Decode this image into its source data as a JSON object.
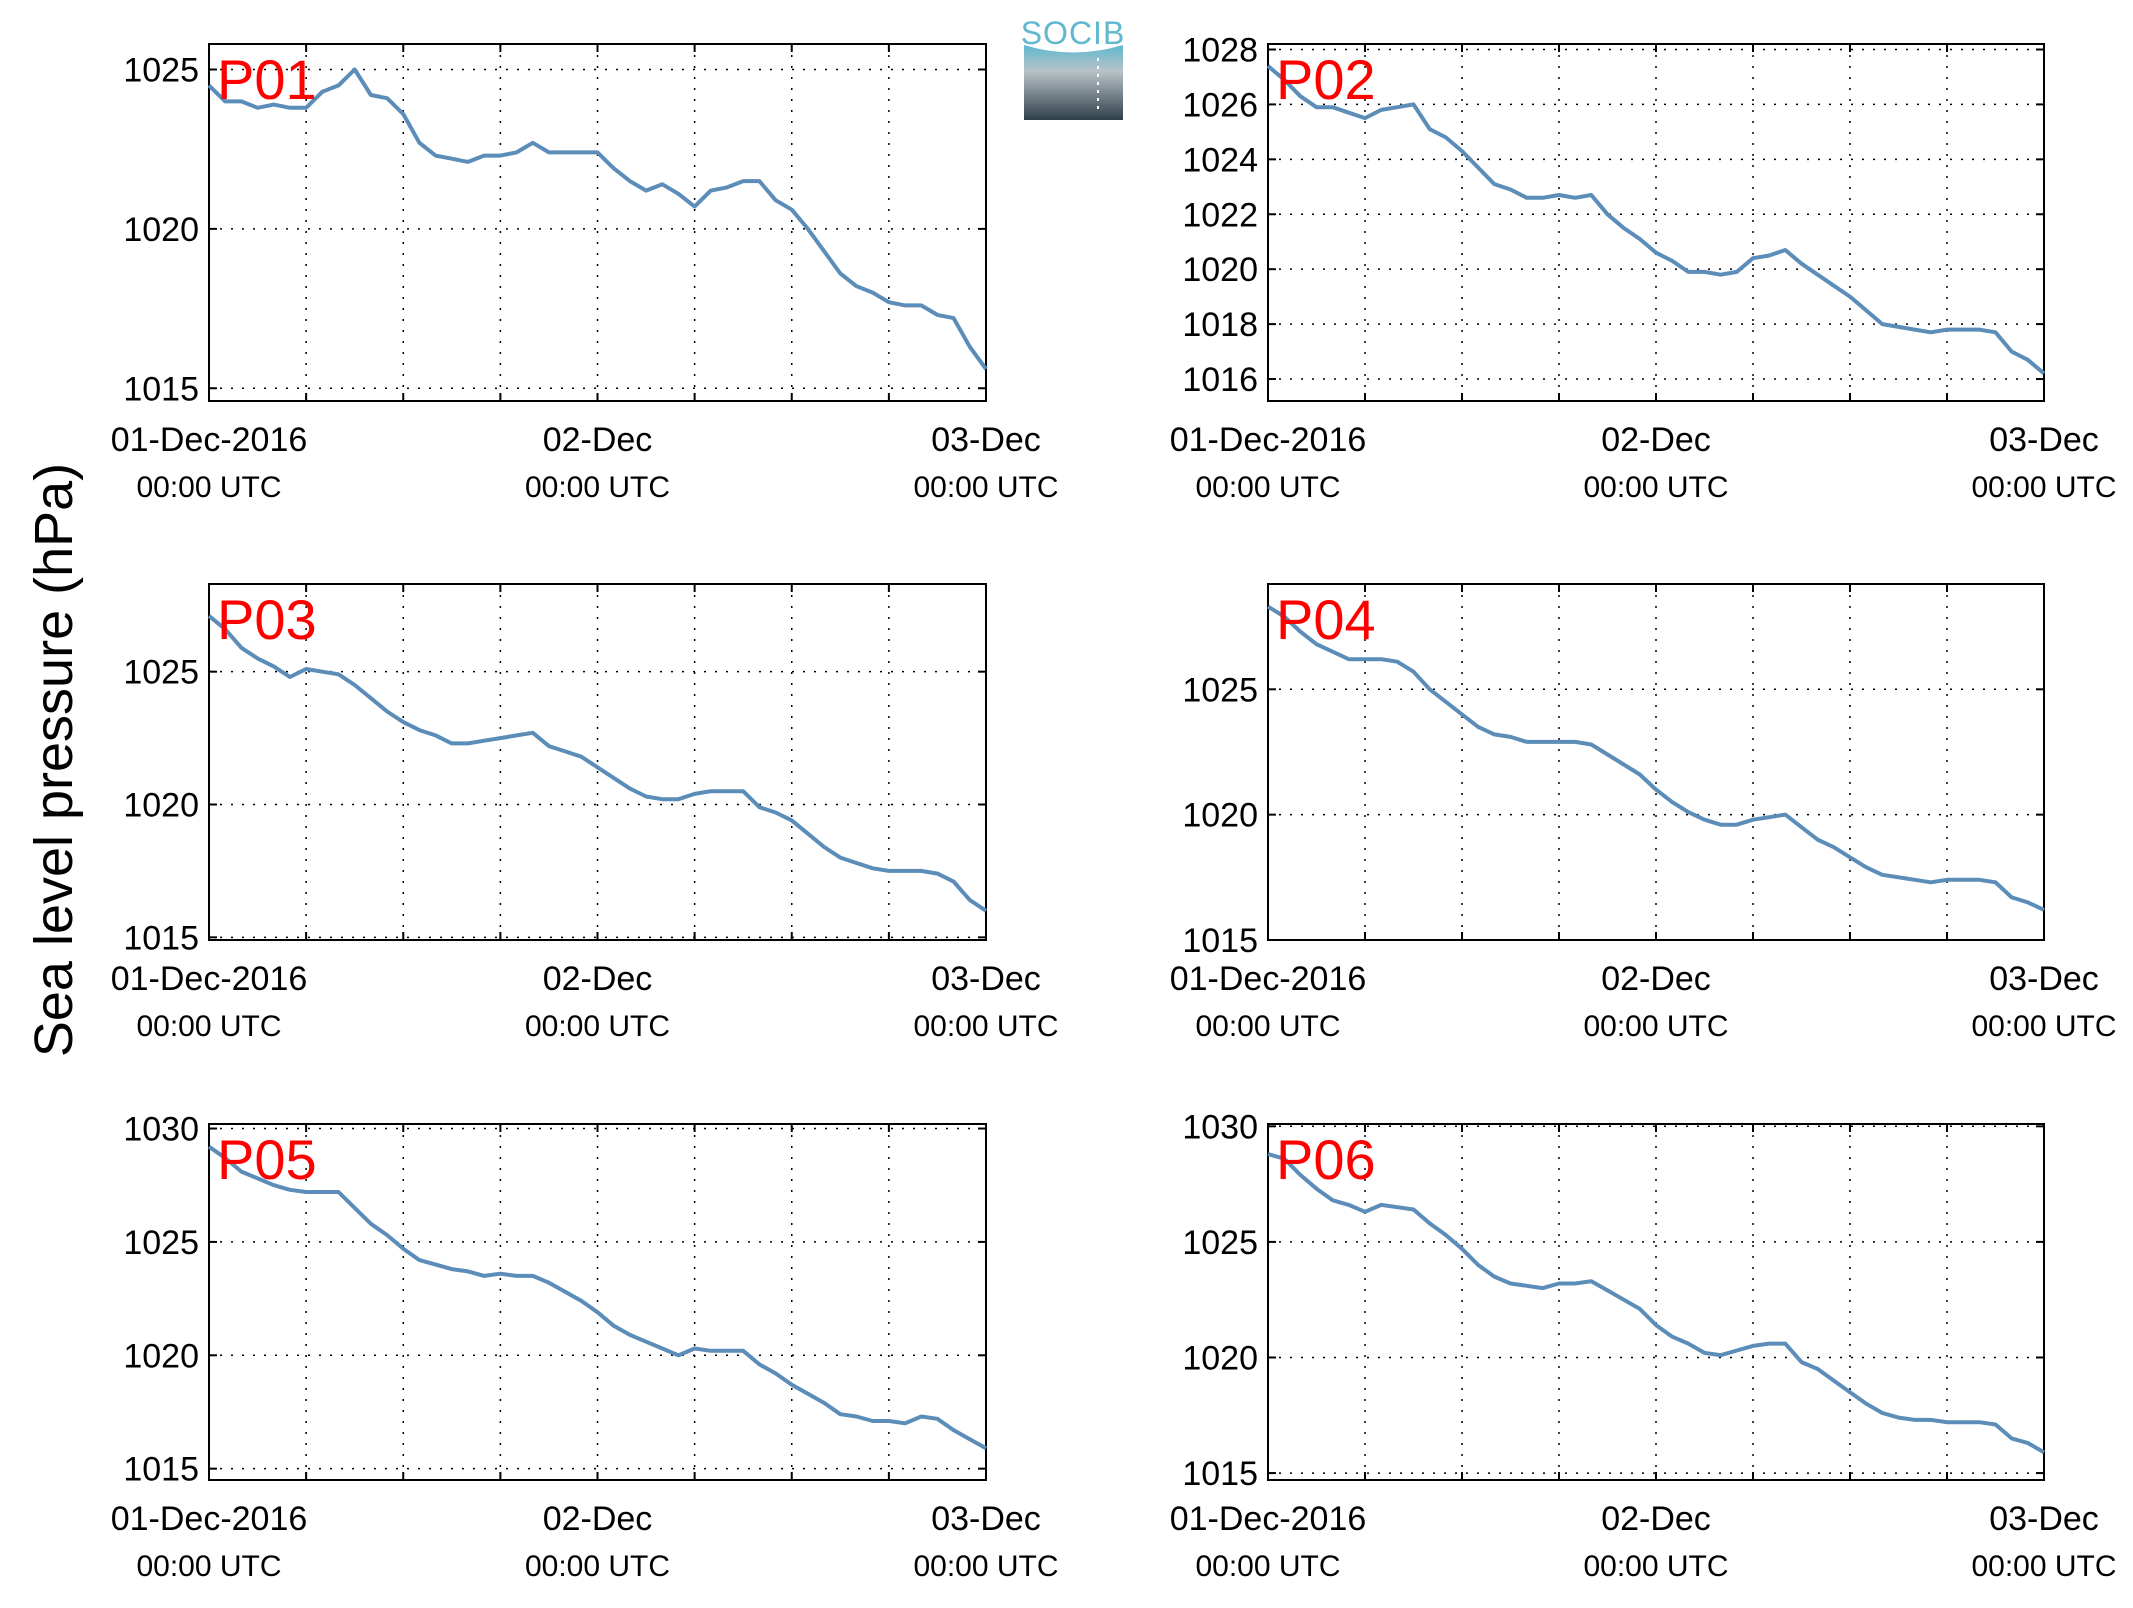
{
  "chart_data": {
    "ylabel": "Sea level pressure (hPa)",
    "logo_text": "SOCIB",
    "xticks": [
      {
        "t": 0,
        "label": "01-Dec-2016",
        "sub": "00:00 UTC"
      },
      {
        "t": 24,
        "label": "02-Dec",
        "sub": "00:00 UTC"
      },
      {
        "t": 48,
        "label": "03-Dec",
        "sub": "00:00 UTC"
      }
    ],
    "xlim": [
      0,
      48
    ],
    "x_units": "hours since 01-Dec-2016 00:00 UTC",
    "line_color": "#5b8db8",
    "label_color": "#ff0000",
    "grid": true,
    "panels": [
      {
        "name": "P01",
        "type": "line",
        "ylim": [
          1014.6,
          1025.8
        ],
        "yticks": [
          1015,
          1020,
          1025
        ],
        "x": [
          0,
          1,
          2,
          3,
          4,
          5,
          6,
          7,
          8,
          9,
          10,
          11,
          12,
          13,
          14,
          15,
          16,
          17,
          18,
          19,
          20,
          21,
          22,
          23,
          24,
          25,
          26,
          27,
          28,
          29,
          30,
          31,
          32,
          33,
          34,
          35,
          36,
          37,
          38,
          39,
          40,
          41,
          42,
          43,
          44,
          45,
          46,
          47,
          48
        ],
        "y": [
          1024.5,
          1024.0,
          1024.0,
          1023.8,
          1023.9,
          1023.8,
          1023.8,
          1024.3,
          1024.5,
          1025.0,
          1024.2,
          1024.1,
          1023.6,
          1022.7,
          1022.3,
          1022.2,
          1022.1,
          1022.3,
          1022.3,
          1022.4,
          1022.7,
          1022.4,
          1022.4,
          1022.4,
          1022.4,
          1021.9,
          1021.5,
          1021.2,
          1021.4,
          1021.1,
          1020.7,
          1021.2,
          1021.3,
          1021.5,
          1021.5,
          1020.9,
          1020.6,
          1020.0,
          1019.3,
          1018.6,
          1018.2,
          1018.0,
          1017.7,
          1017.6,
          1017.6,
          1017.3,
          1017.2,
          1016.3,
          1015.6
        ]
      },
      {
        "name": "P02",
        "type": "line",
        "ylim": [
          1015.2,
          1028.2
        ],
        "yticks": [
          1016,
          1018,
          1020,
          1022,
          1024,
          1026,
          1028
        ],
        "x": [
          0,
          1,
          2,
          3,
          4,
          5,
          6,
          7,
          8,
          9,
          10,
          11,
          12,
          13,
          14,
          15,
          16,
          17,
          18,
          19,
          20,
          21,
          22,
          23,
          24,
          25,
          26,
          27,
          28,
          29,
          30,
          31,
          32,
          33,
          34,
          35,
          36,
          37,
          38,
          39,
          40,
          41,
          42,
          43,
          44,
          45,
          46,
          47,
          48
        ],
        "y": [
          1027.4,
          1026.9,
          1026.3,
          1025.9,
          1025.9,
          1025.7,
          1025.5,
          1025.8,
          1025.9,
          1026.0,
          1025.1,
          1024.8,
          1024.3,
          1023.7,
          1023.1,
          1022.9,
          1022.6,
          1022.6,
          1022.7,
          1022.6,
          1022.7,
          1022.0,
          1021.5,
          1021.1,
          1020.6,
          1020.3,
          1019.9,
          1019.9,
          1019.8,
          1019.9,
          1020.4,
          1020.5,
          1020.7,
          1020.2,
          1019.8,
          1019.4,
          1019.0,
          1018.5,
          1018.0,
          1017.9,
          1017.8,
          1017.7,
          1017.8,
          1017.8,
          1017.8,
          1017.7,
          1017.0,
          1016.7,
          1016.2
        ]
      },
      {
        "name": "P03",
        "type": "line",
        "ylim": [
          1014.9,
          1028.3
        ],
        "yticks": [
          1015,
          1020,
          1025
        ],
        "x": [
          0,
          1,
          2,
          3,
          4,
          5,
          6,
          7,
          8,
          9,
          10,
          11,
          12,
          13,
          14,
          15,
          16,
          17,
          18,
          19,
          20,
          21,
          22,
          23,
          24,
          25,
          26,
          27,
          28,
          29,
          30,
          31,
          32,
          33,
          34,
          35,
          36,
          37,
          38,
          39,
          40,
          41,
          42,
          43,
          44,
          45,
          46,
          47,
          48
        ],
        "y": [
          1027.1,
          1026.6,
          1025.9,
          1025.5,
          1025.2,
          1024.8,
          1025.1,
          1025.0,
          1024.9,
          1024.5,
          1024.0,
          1023.5,
          1023.1,
          1022.8,
          1022.6,
          1022.3,
          1022.3,
          1022.4,
          1022.5,
          1022.6,
          1022.7,
          1022.2,
          1022.0,
          1021.8,
          1021.4,
          1021.0,
          1020.6,
          1020.3,
          1020.2,
          1020.2,
          1020.4,
          1020.5,
          1020.5,
          1020.5,
          1019.9,
          1019.7,
          1019.4,
          1018.9,
          1018.4,
          1018.0,
          1017.8,
          1017.6,
          1017.5,
          1017.5,
          1017.5,
          1017.4,
          1017.1,
          1016.4,
          1016.0
        ]
      },
      {
        "name": "P04",
        "type": "line",
        "ylim": [
          1015.0,
          1029.2
        ],
        "yticks": [
          1015,
          1020,
          1025
        ],
        "x": [
          0,
          1,
          2,
          3,
          4,
          5,
          6,
          7,
          8,
          9,
          10,
          11,
          12,
          13,
          14,
          15,
          16,
          17,
          18,
          19,
          20,
          21,
          22,
          23,
          24,
          25,
          26,
          27,
          28,
          29,
          30,
          31,
          32,
          33,
          34,
          35,
          36,
          37,
          38,
          39,
          40,
          41,
          42,
          43,
          44,
          45,
          46,
          47,
          48
        ],
        "y": [
          1028.3,
          1027.9,
          1027.3,
          1026.8,
          1026.5,
          1026.2,
          1026.2,
          1026.2,
          1026.1,
          1025.7,
          1025.0,
          1024.5,
          1024.0,
          1023.5,
          1023.2,
          1023.1,
          1022.9,
          1022.9,
          1022.9,
          1022.9,
          1022.8,
          1022.4,
          1022.0,
          1021.6,
          1021.0,
          1020.5,
          1020.1,
          1019.8,
          1019.6,
          1019.6,
          1019.8,
          1019.9,
          1020.0,
          1019.5,
          1019.0,
          1018.7,
          1018.3,
          1017.9,
          1017.6,
          1017.5,
          1017.4,
          1017.3,
          1017.4,
          1017.4,
          1017.4,
          1017.3,
          1016.7,
          1016.5,
          1016.2
        ]
      },
      {
        "name": "P05",
        "type": "line",
        "ylim": [
          1014.5,
          1030.2
        ],
        "yticks": [
          1015,
          1020,
          1025,
          1030
        ],
        "x": [
          0,
          1,
          2,
          3,
          4,
          5,
          6,
          7,
          8,
          9,
          10,
          11,
          12,
          13,
          14,
          15,
          16,
          17,
          18,
          19,
          20,
          21,
          22,
          23,
          24,
          25,
          26,
          27,
          28,
          29,
          30,
          31,
          32,
          33,
          34,
          35,
          36,
          37,
          38,
          39,
          40,
          41,
          42,
          43,
          44,
          45,
          46,
          47,
          48
        ],
        "y": [
          1029.2,
          1028.7,
          1028.1,
          1027.8,
          1027.5,
          1027.3,
          1027.2,
          1027.2,
          1027.2,
          1026.5,
          1025.8,
          1025.3,
          1024.7,
          1024.2,
          1024.0,
          1023.8,
          1023.7,
          1023.5,
          1023.6,
          1023.5,
          1023.5,
          1023.2,
          1022.8,
          1022.4,
          1021.9,
          1021.3,
          1020.9,
          1020.6,
          1020.3,
          1020.0,
          1020.3,
          1020.2,
          1020.2,
          1020.2,
          1019.6,
          1019.2,
          1018.7,
          1018.3,
          1017.9,
          1017.4,
          1017.3,
          1017.1,
          1017.1,
          1017.0,
          1017.3,
          1017.2,
          1016.7,
          1016.3,
          1015.9
        ]
      },
      {
        "name": "P06",
        "type": "line",
        "ylim": [
          1014.7,
          1030.1
        ],
        "yticks": [
          1015,
          1020,
          1025,
          1030
        ],
        "x": [
          0,
          1,
          2,
          3,
          4,
          5,
          6,
          7,
          8,
          9,
          10,
          11,
          12,
          13,
          14,
          15,
          16,
          17,
          18,
          19,
          20,
          21,
          22,
          23,
          24,
          25,
          26,
          27,
          28,
          29,
          30,
          31,
          32,
          33,
          34,
          35,
          36,
          37,
          38,
          39,
          40,
          41,
          42,
          43,
          44,
          45,
          46,
          47,
          48
        ],
        "y": [
          1028.8,
          1028.6,
          1027.9,
          1027.3,
          1026.8,
          1026.6,
          1026.3,
          1026.6,
          1026.5,
          1026.4,
          1025.8,
          1025.3,
          1024.7,
          1024.0,
          1023.5,
          1023.2,
          1023.1,
          1023.0,
          1023.2,
          1023.2,
          1023.3,
          1022.9,
          1022.5,
          1022.1,
          1021.4,
          1020.9,
          1020.6,
          1020.2,
          1020.1,
          1020.3,
          1020.5,
          1020.6,
          1020.6,
          1019.8,
          1019.5,
          1019.0,
          1018.5,
          1018.0,
          1017.6,
          1017.4,
          1017.3,
          1017.3,
          1017.2,
          1017.2,
          1017.2,
          1017.1,
          1016.5,
          1016.3,
          1015.9
        ]
      }
    ]
  }
}
